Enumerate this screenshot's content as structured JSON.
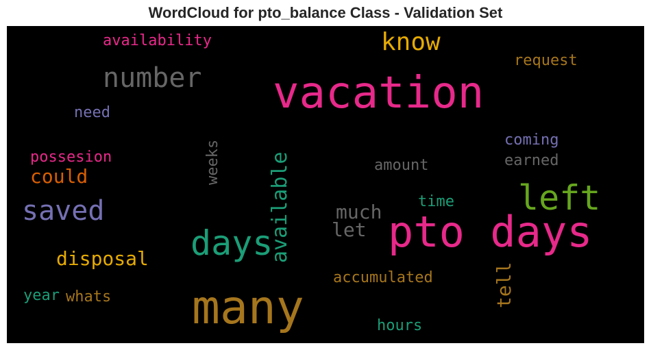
{
  "title": "WordCloud for pto_balance Class - Validation Set",
  "background_color": "#000000",
  "words": [
    {
      "text": "vacation",
      "color": "#e7298a",
      "orientation": "horizontal"
    },
    {
      "text": "many",
      "color": "#a6761d",
      "orientation": "horizontal"
    },
    {
      "text": "pto days",
      "color": "#e7298a",
      "orientation": "horizontal"
    },
    {
      "text": "days",
      "color": "#1b9e77",
      "orientation": "horizontal"
    },
    {
      "text": "left",
      "color": "#66a61e",
      "orientation": "horizontal"
    },
    {
      "text": "number",
      "color": "#666666",
      "orientation": "horizontal"
    },
    {
      "text": "saved",
      "color": "#7570b3",
      "orientation": "horizontal"
    },
    {
      "text": "know",
      "color": "#e6ab02",
      "orientation": "horizontal"
    },
    {
      "text": "available",
      "color": "#1b9e77",
      "orientation": "vertical"
    },
    {
      "text": "disposal",
      "color": "#e6ab02",
      "orientation": "horizontal"
    },
    {
      "text": "much",
      "color": "#666666",
      "orientation": "horizontal"
    },
    {
      "text": "could",
      "color": "#d95f02",
      "orientation": "horizontal"
    },
    {
      "text": "let",
      "color": "#666666",
      "orientation": "horizontal"
    },
    {
      "text": "tell",
      "color": "#a6761d",
      "orientation": "vertical"
    },
    {
      "text": "availability",
      "color": "#e7298a",
      "orientation": "horizontal"
    },
    {
      "text": "request",
      "color": "#a6761d",
      "orientation": "horizontal"
    },
    {
      "text": "possesion",
      "color": "#e7298a",
      "orientation": "horizontal"
    },
    {
      "text": "weeks",
      "color": "#666666",
      "orientation": "vertical"
    },
    {
      "text": "coming",
      "color": "#7570b3",
      "orientation": "horizontal"
    },
    {
      "text": "earned",
      "color": "#666666",
      "orientation": "horizontal"
    },
    {
      "text": "amount",
      "color": "#666666",
      "orientation": "horizontal"
    },
    {
      "text": "need",
      "color": "#7570b3",
      "orientation": "horizontal"
    },
    {
      "text": "time",
      "color": "#1b9e77",
      "orientation": "horizontal"
    },
    {
      "text": "accumulated",
      "color": "#a6761d",
      "orientation": "horizontal"
    },
    {
      "text": "year",
      "color": "#1b9e77",
      "orientation": "horizontal"
    },
    {
      "text": "whats",
      "color": "#a6761d",
      "orientation": "horizontal"
    },
    {
      "text": "hours",
      "color": "#1b9e77",
      "orientation": "horizontal"
    }
  ]
}
